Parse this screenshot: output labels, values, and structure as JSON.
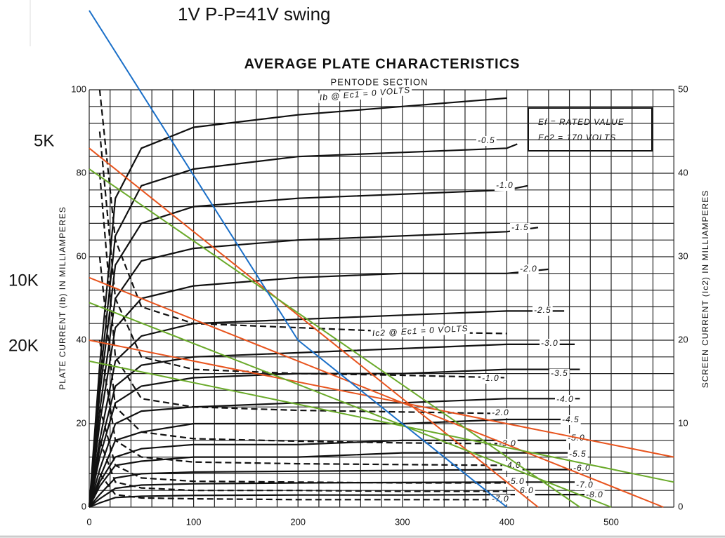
{
  "chart_data": {
    "type": "line",
    "annotation": "1V P-P=41V swing",
    "title": "AVERAGE PLATE CHARACTERISTICS",
    "subtitle": "PENTODE SECTION",
    "load_labels": [
      "5K",
      "10K",
      "20K"
    ],
    "ylabel": "PLATE CURRENT (Ib) IN MILLIAMPERES",
    "y2label": "SCREEN CURRENT (Ic2) IN MILLIAMPERES",
    "info_box": [
      "Ef = RATED VALUE",
      "Ec2 = 170 VOLTS"
    ],
    "xlim": [
      0,
      560
    ],
    "ylim": [
      0,
      100
    ],
    "y2lim": [
      0,
      50
    ],
    "xticks": [
      0,
      100,
      200,
      300,
      400,
      500
    ],
    "yticks": [
      0,
      20,
      40,
      60,
      80,
      100
    ],
    "y2ticks": [
      0,
      10,
      20,
      30,
      40,
      50
    ],
    "xgrid": [
      0,
      20,
      40,
      60,
      80,
      100,
      120,
      140,
      160,
      180,
      200,
      220,
      240,
      260,
      280,
      300,
      320,
      340,
      360,
      380,
      400,
      420,
      440,
      460,
      480,
      500,
      520,
      540,
      560
    ],
    "ygrid": [
      0,
      4,
      8,
      12,
      16,
      20,
      24,
      28,
      32,
      36,
      40,
      44,
      48,
      52,
      56,
      60,
      64,
      68,
      72,
      76,
      80,
      84,
      88,
      92,
      96,
      100
    ],
    "series": [
      {
        "label": "Ib @ Ec1 = 0 VOLTS",
        "color": "#111111",
        "x": [
          0,
          10,
          25,
          50,
          100,
          200,
          300,
          400
        ],
        "values": [
          0,
          34,
          74,
          86,
          91,
          94,
          96,
          98
        ]
      },
      {
        "label": "-0.5",
        "color": "#111111",
        "x": [
          0,
          10,
          25,
          50,
          100,
          200,
          300,
          400,
          410
        ],
        "values": [
          0,
          30,
          65,
          77,
          81,
          84,
          85,
          86,
          87
        ]
      },
      {
        "label": "-1.0",
        "color": "#111111",
        "x": [
          0,
          10,
          25,
          50,
          100,
          200,
          300,
          400,
          420
        ],
        "values": [
          0,
          27,
          58,
          68,
          72,
          74,
          75,
          76,
          77
        ]
      },
      {
        "label": "-1.5",
        "color": "#111111",
        "x": [
          0,
          10,
          25,
          50,
          100,
          200,
          300,
          400,
          430
        ],
        "values": [
          0,
          23,
          50,
          59,
          62,
          64,
          65,
          66,
          67
        ]
      },
      {
        "label": "-2.0",
        "color": "#111111",
        "x": [
          0,
          10,
          25,
          50,
          100,
          200,
          300,
          400,
          440
        ],
        "values": [
          0,
          20,
          43,
          50,
          53,
          55,
          56,
          56,
          57
        ]
      },
      {
        "label": "-2.5",
        "color": "#111111",
        "x": [
          0,
          10,
          25,
          50,
          100,
          200,
          300,
          400,
          455
        ],
        "values": [
          0,
          16,
          35,
          41,
          44,
          45,
          46,
          47,
          47
        ]
      },
      {
        "label": "-3.0",
        "color": "#111111",
        "x": [
          0,
          10,
          25,
          50,
          100,
          200,
          300,
          400,
          465
        ],
        "values": [
          0,
          14,
          29,
          34,
          36,
          37,
          38,
          39,
          39
        ]
      },
      {
        "label": "-3.5",
        "color": "#111111",
        "x": [
          0,
          10,
          25,
          50,
          100,
          200,
          300,
          400,
          470
        ],
        "values": [
          0,
          12,
          25,
          29,
          31,
          32,
          32,
          33,
          33
        ]
      },
      {
        "label": "-4.0",
        "color": "#111111",
        "x": [
          0,
          10,
          25,
          50,
          100,
          200,
          300,
          400,
          470
        ],
        "values": [
          0,
          9,
          20,
          23,
          24,
          25,
          25,
          26,
          26
        ]
      },
      {
        "label": "-4.5",
        "color": "#111111",
        "x": [
          0,
          10,
          25,
          50,
          100,
          200,
          300,
          400,
          470
        ],
        "values": [
          0,
          7,
          16,
          18,
          20,
          20,
          20,
          21,
          21
        ]
      },
      {
        "label": "-5.0",
        "color": "#111111",
        "x": [
          0,
          10,
          25,
          50,
          100,
          200,
          300,
          400,
          470
        ],
        "values": [
          0,
          6,
          12,
          14,
          15,
          15,
          16,
          16,
          16
        ]
      },
      {
        "label": "-5.5",
        "color": "#111111",
        "x": [
          0,
          10,
          25,
          50,
          100,
          200,
          300,
          400,
          470
        ],
        "values": [
          0,
          5,
          10,
          11,
          12,
          12,
          13,
          13,
          13
        ]
      },
      {
        "label": "-6.0",
        "color": "#111111",
        "x": [
          0,
          10,
          25,
          50,
          100,
          200,
          300,
          400,
          470
        ],
        "values": [
          0,
          3,
          7,
          8,
          8.4,
          8.6,
          8.8,
          9,
          9
        ]
      },
      {
        "label": "-7.0",
        "color": "#111111",
        "x": [
          0,
          10,
          25,
          50,
          100,
          200,
          300,
          400,
          470
        ],
        "values": [
          0,
          2,
          4.5,
          5.3,
          5.6,
          5.8,
          5.9,
          6,
          6
        ]
      },
      {
        "label": "-8.0",
        "color": "#111111",
        "x": [
          0,
          10,
          25,
          50,
          100,
          200,
          300,
          400,
          480
        ],
        "values": [
          0,
          1,
          2.3,
          2.6,
          2.8,
          2.9,
          2.9,
          3,
          3
        ]
      },
      {
        "label": "Ic2 @ Ec1 = 0 VOLTS",
        "color": "#111111",
        "dash": true,
        "axis": "y2",
        "x": [
          10,
          25,
          50,
          100,
          200,
          300,
          400
        ],
        "values": [
          50,
          32,
          24,
          22,
          21.5,
          21,
          20.8
        ]
      },
      {
        "label": "-1.0",
        "color": "#111111",
        "dash": true,
        "axis": "y2",
        "x": [
          10,
          25,
          50,
          100,
          200,
          300,
          400
        ],
        "values": [
          45,
          25,
          18,
          16.5,
          16,
          15.8,
          15.5
        ]
      },
      {
        "label": "-2.0",
        "color": "#111111",
        "dash": true,
        "axis": "y2",
        "x": [
          10,
          25,
          50,
          100,
          200,
          300,
          400
        ],
        "values": [
          40,
          18,
          13,
          12,
          11.6,
          11.4,
          11.2
        ]
      },
      {
        "label": "-3.0",
        "color": "#111111",
        "dash": true,
        "axis": "y2",
        "x": [
          10,
          25,
          50,
          100,
          200,
          300,
          400
        ],
        "values": [
          30,
          12,
          9,
          8.2,
          7.9,
          7.7,
          7.6
        ]
      },
      {
        "label": "-4.0",
        "color": "#111111",
        "dash": true,
        "axis": "y2",
        "x": [
          10,
          25,
          50,
          100,
          200,
          300,
          400
        ],
        "values": [
          20,
          8,
          6,
          5.4,
          5.2,
          5.1,
          5
        ]
      },
      {
        "label": "-5.0",
        "color": "#111111",
        "dash": true,
        "axis": "y2",
        "x": [
          10,
          25,
          50,
          100,
          200,
          300,
          400
        ],
        "values": [
          12,
          5,
          3.5,
          3.1,
          3,
          2.9,
          2.9
        ]
      },
      {
        "label": "-6.0",
        "color": "#111111",
        "dash": true,
        "axis": "y2",
        "x": [
          10,
          25,
          50,
          100,
          200,
          300,
          400
        ],
        "values": [
          8,
          3,
          2.3,
          2,
          2,
          1.9,
          1.9
        ]
      },
      {
        "label": "-7.0",
        "color": "#111111",
        "dash": true,
        "axis": "y2",
        "x": [
          10,
          25,
          50,
          100,
          200,
          300,
          400
        ],
        "values": [
          4,
          1.5,
          1.1,
          1,
          0.9,
          0.9,
          0.9
        ]
      },
      {
        "color": "#e8541e",
        "x": [
          0,
          430
        ],
        "values": [
          86,
          0
        ]
      },
      {
        "color": "#e8541e",
        "x": [
          0,
          550
        ],
        "values": [
          55,
          0
        ]
      },
      {
        "color": "#e8541e",
        "x": [
          0,
          560
        ],
        "values": [
          40,
          12
        ]
      },
      {
        "color": "#6aaa2a",
        "x": [
          0,
          470
        ],
        "values": [
          81,
          0
        ]
      },
      {
        "color": "#6aaa2a",
        "x": [
          0,
          500
        ],
        "values": [
          49,
          0
        ]
      },
      {
        "color": "#6aaa2a",
        "x": [
          0,
          560
        ],
        "values": [
          35,
          6
        ]
      },
      {
        "color": "#1a6fc8",
        "x": [
          0,
          200,
          400
        ],
        "values": [
          119,
          40,
          0
        ]
      }
    ]
  }
}
